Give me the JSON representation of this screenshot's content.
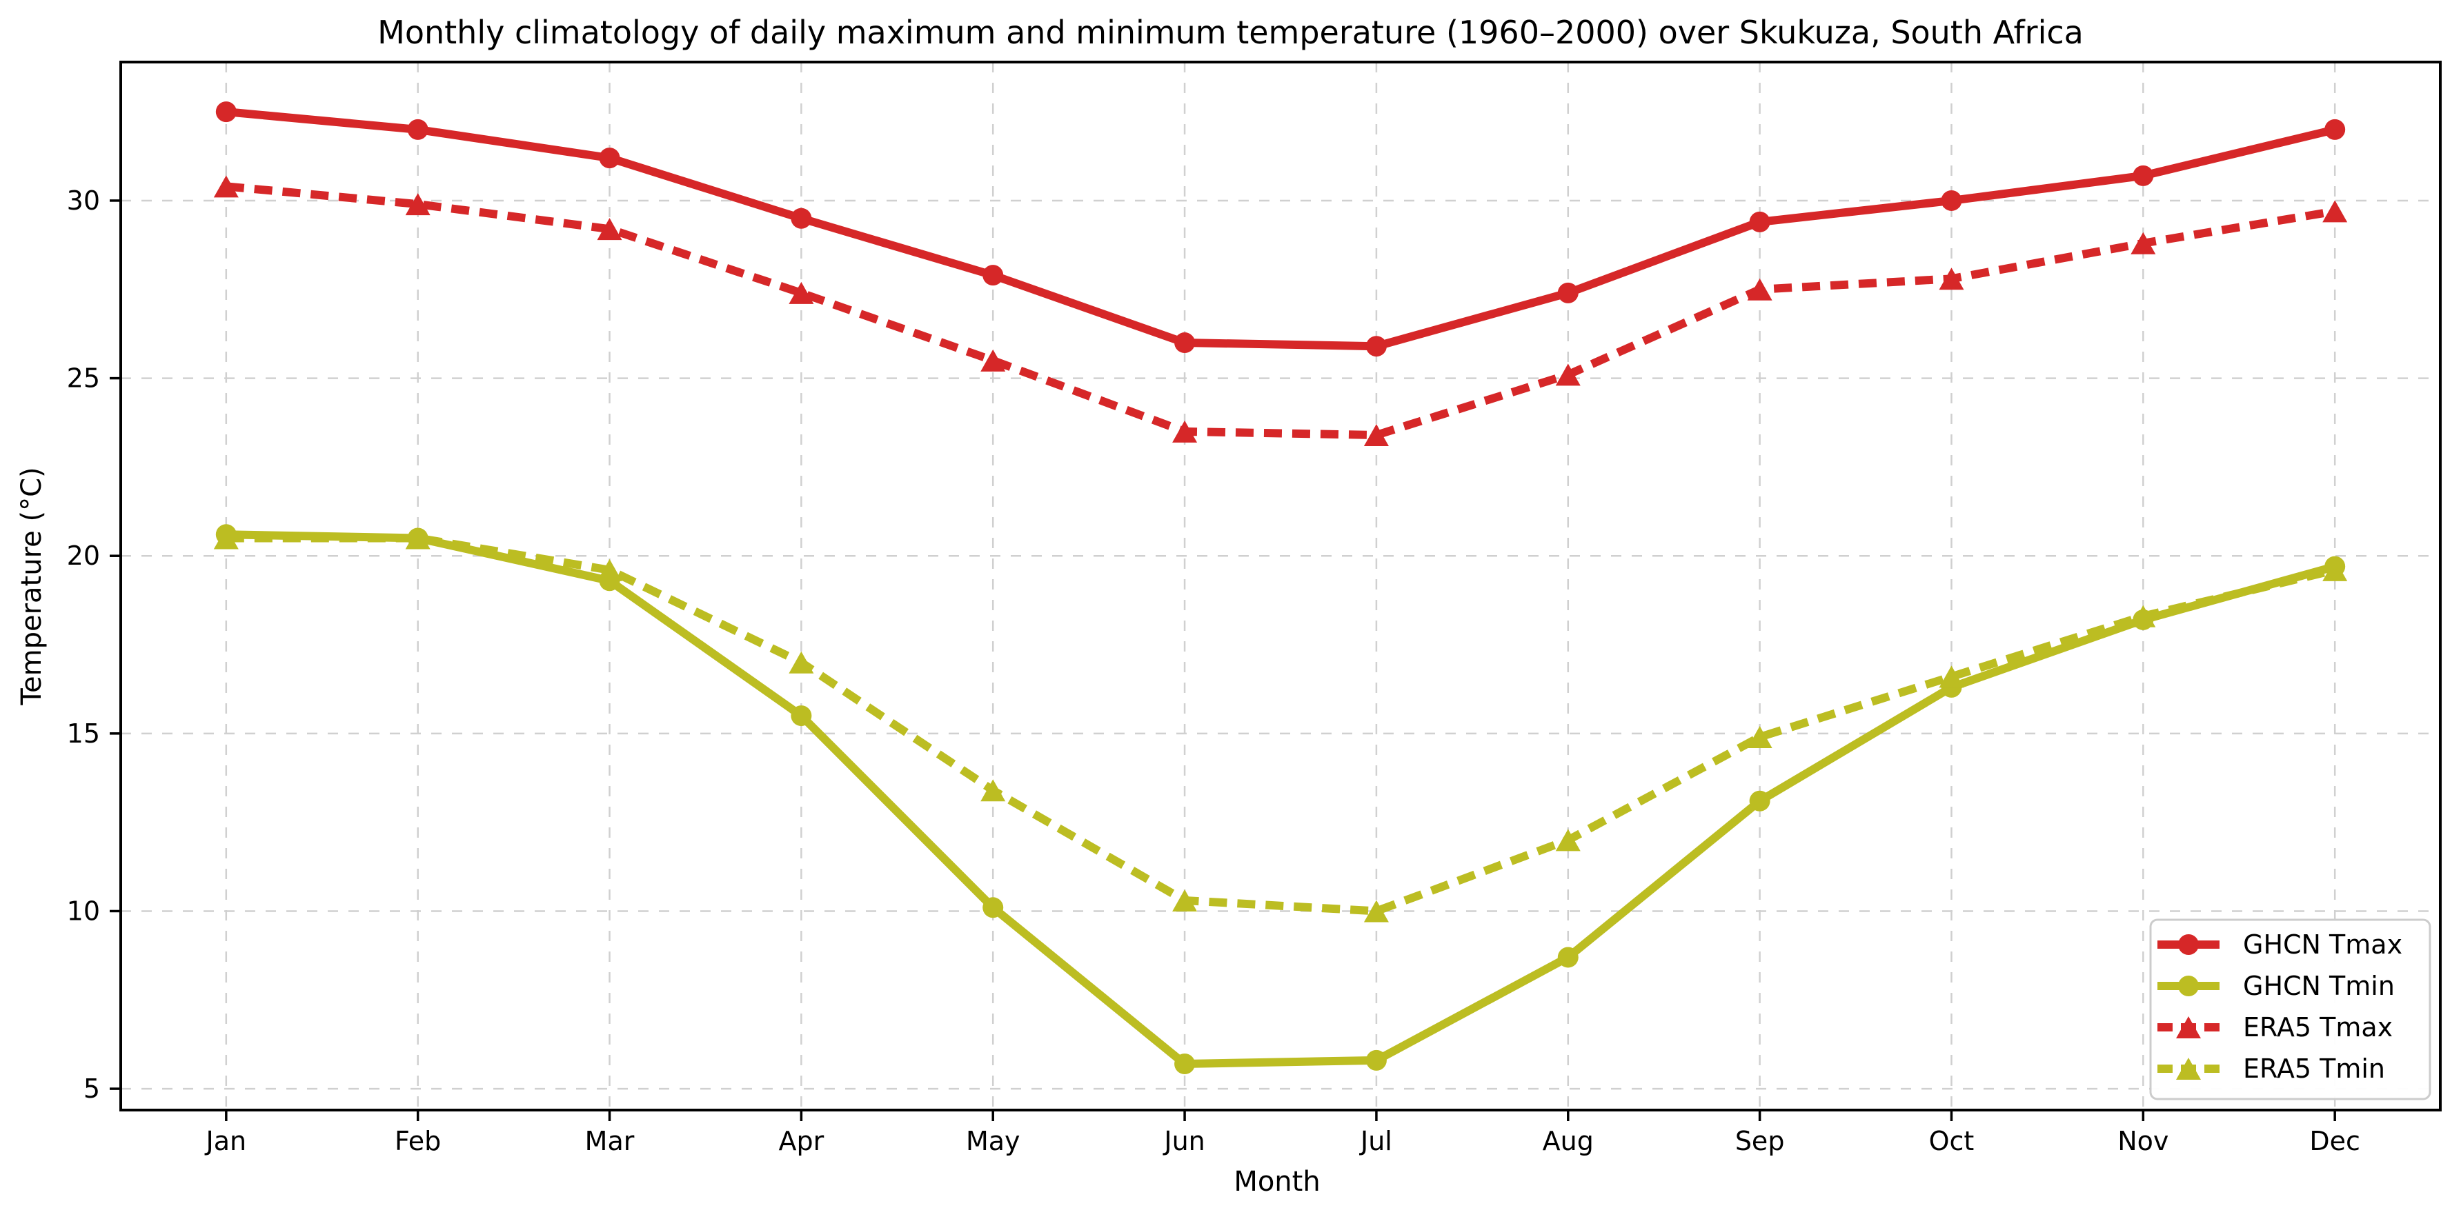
{
  "chart_data": {
    "type": "line",
    "title": "Monthly climatology of daily maximum and minimum temperature (1960–2000) over Skukuza, South Africa",
    "xlabel": "Month",
    "ylabel": "Temperature (°C)",
    "categories": [
      "Jan",
      "Feb",
      "Mar",
      "Apr",
      "May",
      "Jun",
      "Jul",
      "Aug",
      "Sep",
      "Oct",
      "Nov",
      "Dec"
    ],
    "y_ticks": [
      5,
      10,
      15,
      20,
      25,
      30
    ],
    "ylim": [
      4.4,
      33.9
    ],
    "grid": true,
    "grid_style": "dashed",
    "legend_position": "lower right",
    "legend_labels": [
      "GHCN Tmax",
      "GHCN Tmin",
      "ERA5 Tmax",
      "ERA5 Tmin"
    ],
    "colors": {
      "tmax": "#d62728",
      "tmin": "#bcbd22"
    },
    "series": [
      {
        "name": "GHCN Tmax",
        "color": "#d62728",
        "style": "solid",
        "marker": "circle",
        "values": [
          32.5,
          32.0,
          31.2,
          29.5,
          27.9,
          26.0,
          25.9,
          27.4,
          29.4,
          30.0,
          30.7,
          32.0
        ]
      },
      {
        "name": "GHCN Tmin",
        "color": "#bcbd22",
        "style": "solid",
        "marker": "circle",
        "values": [
          20.6,
          20.5,
          19.3,
          15.5,
          10.1,
          5.7,
          5.8,
          8.7,
          13.1,
          16.3,
          18.2,
          19.7
        ]
      },
      {
        "name": "ERA5 Tmax",
        "color": "#d62728",
        "style": "dashed",
        "marker": "triangle",
        "values": [
          30.4,
          29.9,
          29.2,
          27.4,
          25.5,
          23.5,
          23.4,
          25.1,
          27.5,
          27.8,
          28.8,
          29.7
        ]
      },
      {
        "name": "ERA5 Tmin",
        "color": "#bcbd22",
        "style": "dashed",
        "marker": "triangle",
        "values": [
          20.5,
          20.5,
          19.6,
          17.0,
          13.4,
          10.3,
          10.0,
          12.0,
          14.9,
          16.6,
          18.3,
          19.6
        ]
      }
    ]
  }
}
